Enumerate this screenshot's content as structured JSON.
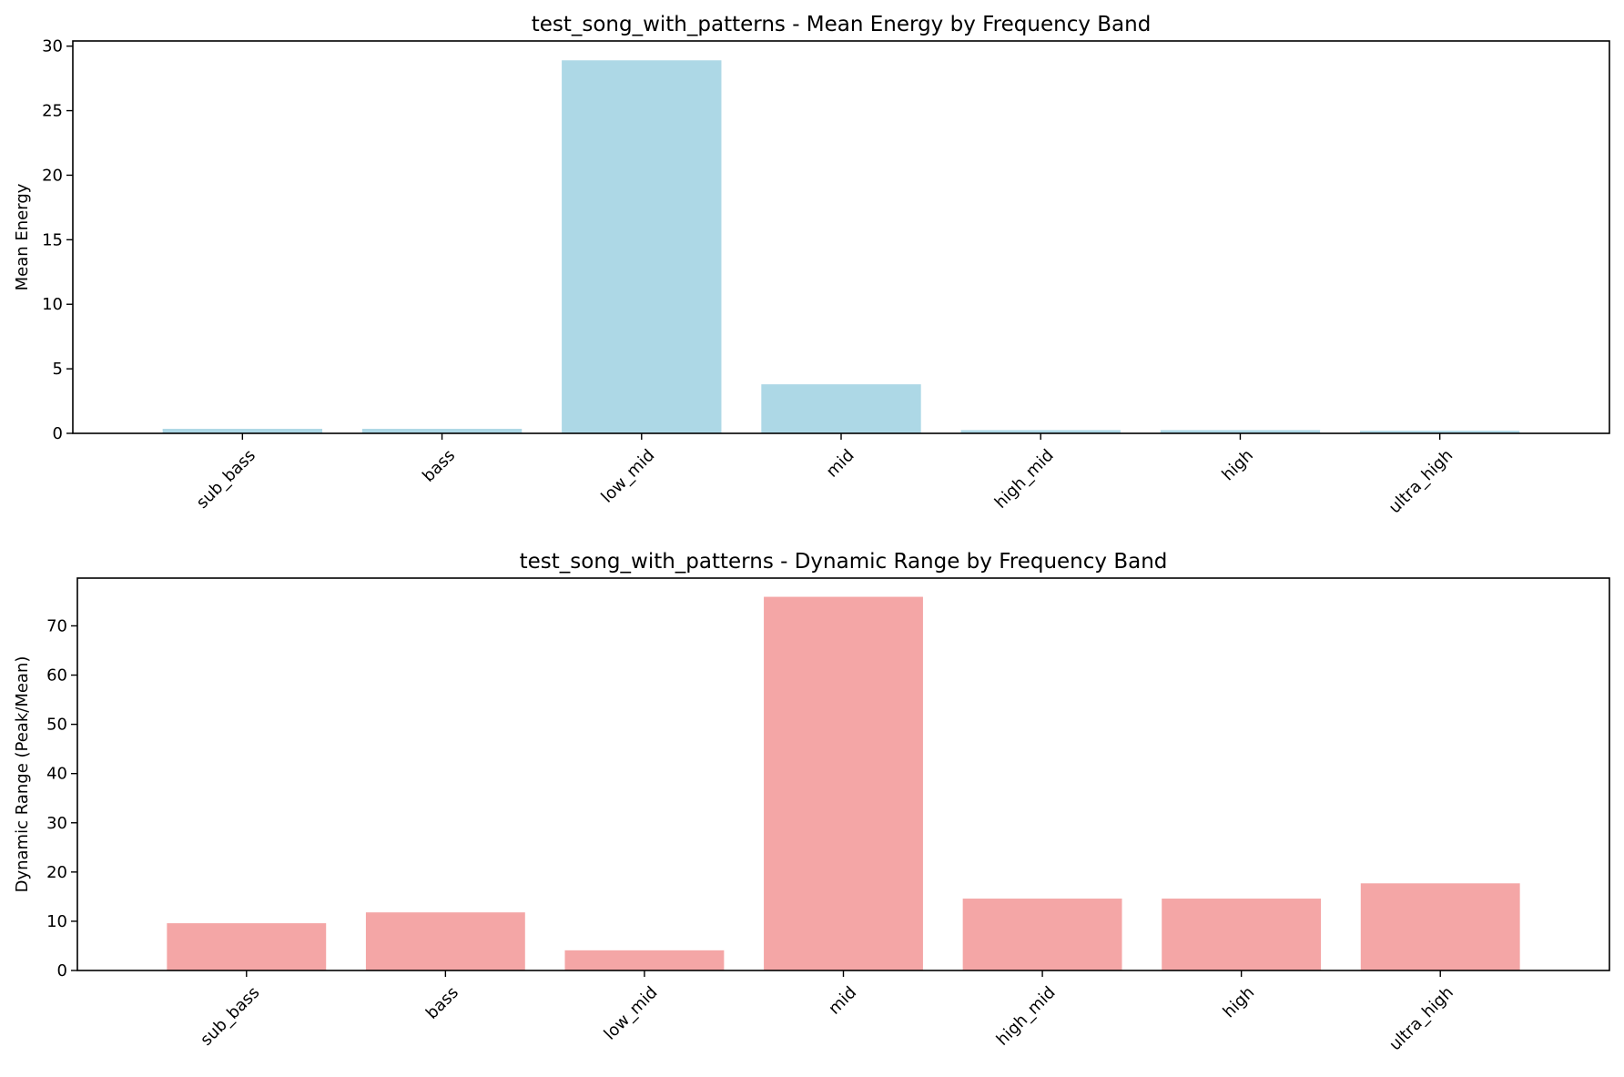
{
  "chart_data": [
    {
      "type": "bar",
      "title": "test_song_with_patterns - Mean Energy by Frequency Band",
      "xlabel": "",
      "ylabel": "Mean Energy",
      "categories": [
        "sub_bass",
        "bass",
        "low_mid",
        "mid",
        "high_mid",
        "high",
        "ultra_high"
      ],
      "values": [
        0.35,
        0.35,
        28.9,
        3.8,
        0.25,
        0.25,
        0.2
      ],
      "ylim": [
        0,
        30.4
      ],
      "yticks": [
        0,
        5,
        10,
        15,
        20,
        25,
        30
      ],
      "color": "#add8e6",
      "grid": false
    },
    {
      "type": "bar",
      "title": "test_song_with_patterns - Dynamic Range by Frequency Band",
      "xlabel": "",
      "ylabel": "Dynamic Range (Peak/Mean)",
      "categories": [
        "sub_bass",
        "bass",
        "low_mid",
        "mid",
        "high_mid",
        "high",
        "ultra_high"
      ],
      "values": [
        9.6,
        11.8,
        4.1,
        75.9,
        14.6,
        14.6,
        17.7
      ],
      "ylim": [
        0,
        79.7
      ],
      "yticks": [
        0,
        10,
        20,
        30,
        40,
        50,
        60,
        70
      ],
      "color": "#f08080",
      "grid": false
    }
  ]
}
